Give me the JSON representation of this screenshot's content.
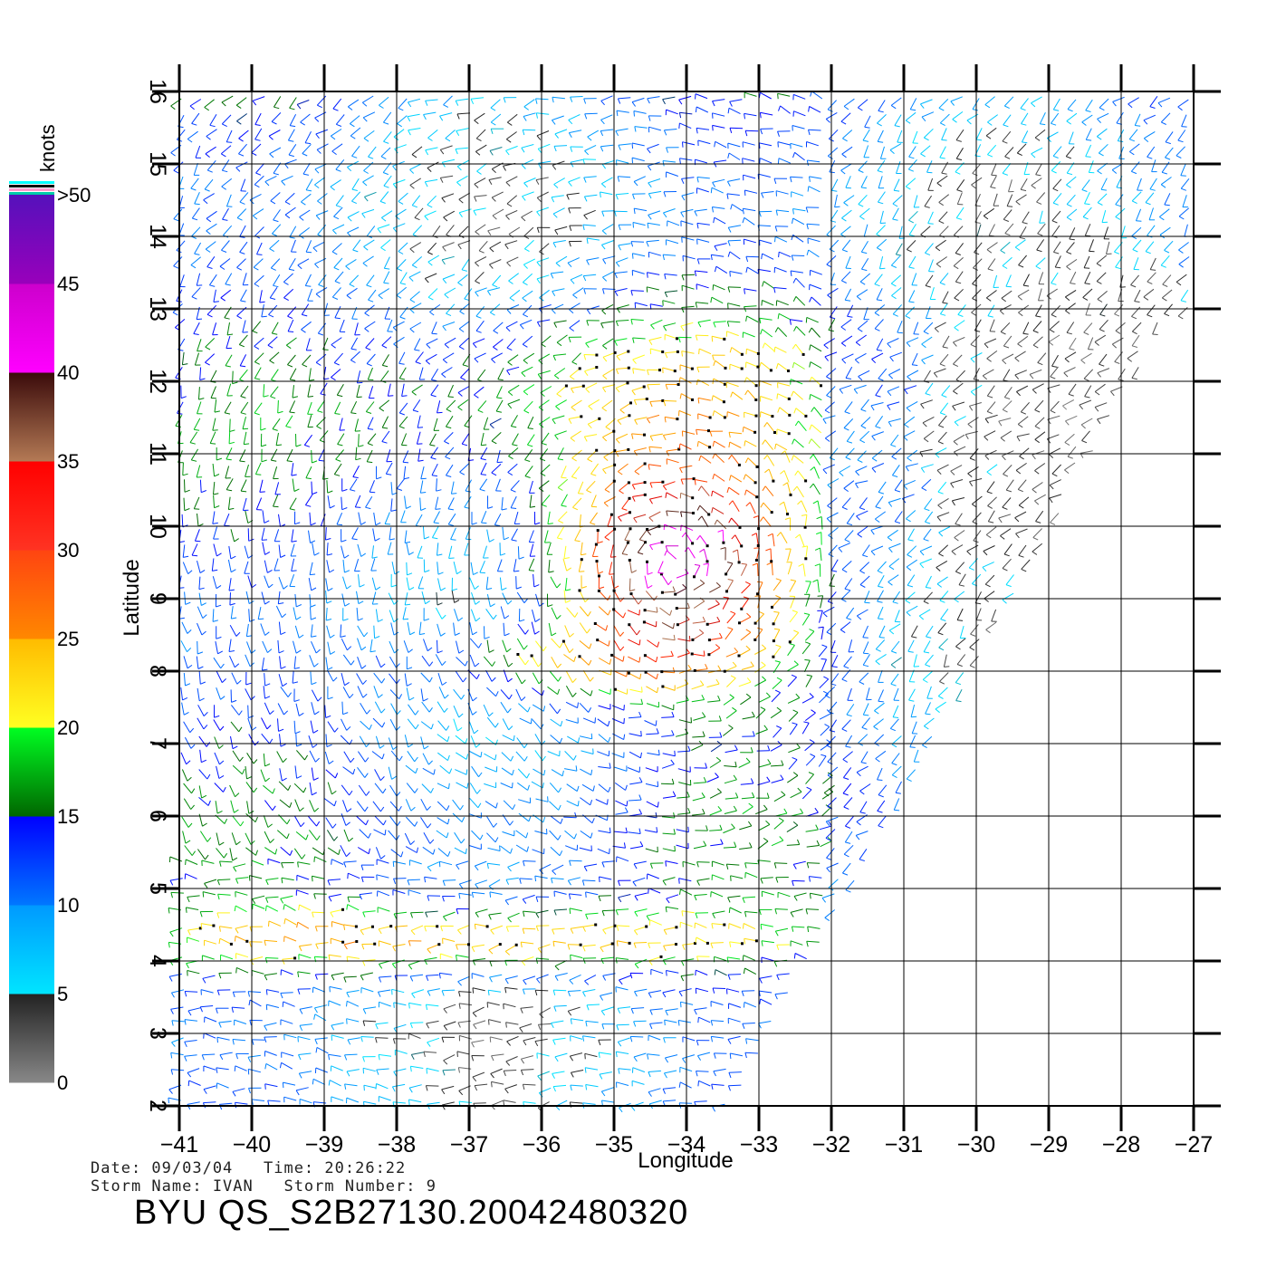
{
  "chart_data": {
    "type": "wind-barb-field",
    "x_axis": {
      "label": "Longitude",
      "range": [
        -41,
        -27
      ],
      "ticks": [
        -41,
        -40,
        -39,
        -38,
        -37,
        -36,
        -35,
        -34,
        -33,
        -32,
        -31,
        -30,
        -29,
        -28,
        -27
      ]
    },
    "y_axis": {
      "label": "Latitude",
      "range": [
        2,
        16
      ],
      "ticks": [
        2,
        3,
        4,
        5,
        6,
        7,
        8,
        9,
        10,
        11,
        12,
        13,
        14,
        15,
        16
      ]
    },
    "grid": true,
    "colorbar": {
      "unit": "knots",
      "ticks": [
        "0",
        "5",
        "10",
        "15",
        "20",
        "25",
        "30",
        "35",
        "40",
        "45",
        ">50"
      ],
      "bands": [
        {
          "range": [
            0,
            5
          ],
          "colors": [
            "#888888",
            "#222222"
          ]
        },
        {
          "range": [
            5,
            10
          ],
          "colors": [
            "#00e5ff",
            "#0099ff"
          ]
        },
        {
          "range": [
            10,
            15
          ],
          "colors": [
            "#0077ff",
            "#0000ff"
          ]
        },
        {
          "range": [
            15,
            20
          ],
          "colors": [
            "#006600",
            "#00ff22"
          ]
        },
        {
          "range": [
            20,
            25
          ],
          "colors": [
            "#ffff22",
            "#ffbb00"
          ]
        },
        {
          "range": [
            25,
            30
          ],
          "colors": [
            "#ff8800",
            "#ff4411"
          ]
        },
        {
          "range": [
            30,
            35
          ],
          "colors": [
            "#ff3322",
            "#ff0000"
          ]
        },
        {
          "range": [
            35,
            40
          ],
          "colors": [
            "#b47a55",
            "#3a0a0a"
          ]
        },
        {
          "range": [
            40,
            45
          ],
          "colors": [
            "#ff00ff",
            "#cc00cc"
          ]
        },
        {
          "range": [
            45,
            50
          ],
          "colors": [
            "#9900bb",
            "#5511bb"
          ]
        }
      ]
    },
    "wind_features": {
      "storm_center": {
        "lon": -34.2,
        "lat": 9.5
      },
      "strong_band_1": {
        "lat": 8.2,
        "lon_range": [
          -37,
          -33
        ]
      },
      "strong_band_2": {
        "lat": 4.3,
        "lon_range": [
          -41,
          -33
        ]
      },
      "calm_region": {
        "lon": -28.5,
        "lat": 11.5
      }
    }
  },
  "meta": {
    "line1": "Date: 09/03/04   Time: 20:26:22",
    "line2": "Storm Name: IVAN   Storm Number: 9",
    "title": "BYU QS_S2B27130.20042480320"
  }
}
